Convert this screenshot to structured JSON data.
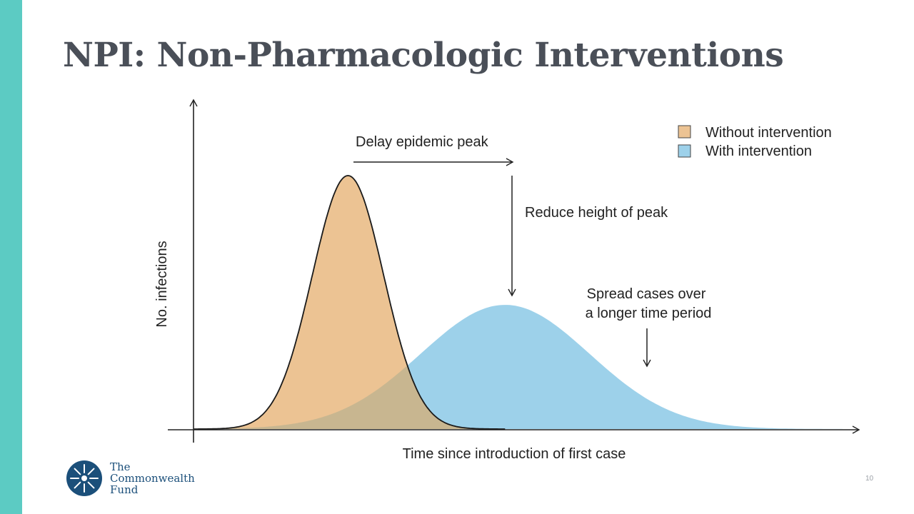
{
  "slide": {
    "title": "NPI: Non-Pharmacologic Interventions",
    "page_number": "10",
    "accent_color": "#5ccbc3",
    "logo": {
      "line1": "The",
      "line2": "Commonwealth",
      "line3": "Fund",
      "color": "#1b4f7a"
    }
  },
  "chart_data": {
    "type": "area",
    "title": "",
    "xlabel": "Time since introduction of first case",
    "ylabel": "No. infections",
    "xlim": [
      0,
      1
    ],
    "ylim": [
      0,
      1
    ],
    "grid": false,
    "legend_position": "top-right",
    "series": [
      {
        "name": "Without intervention",
        "color": "#ecc393",
        "stroke": "#1a1a1a",
        "peak_x": 0.238,
        "peak_y": 1.0,
        "width_x": 0.055,
        "end_x": 0.48
      },
      {
        "name": "With intervention",
        "color": "#9dd1ea",
        "stroke": "none",
        "peak_x": 0.48,
        "peak_y": 0.49,
        "width_x": 0.13,
        "end_x": 1.0
      }
    ],
    "overlap_color": "#c8b690",
    "annotations": [
      {
        "id": "delay",
        "text": "Delay epidemic peak"
      },
      {
        "id": "reduce",
        "text": "Reduce height of peak"
      },
      {
        "id": "spread",
        "lines": [
          "Spread cases over",
          "a longer time period"
        ]
      }
    ]
  }
}
